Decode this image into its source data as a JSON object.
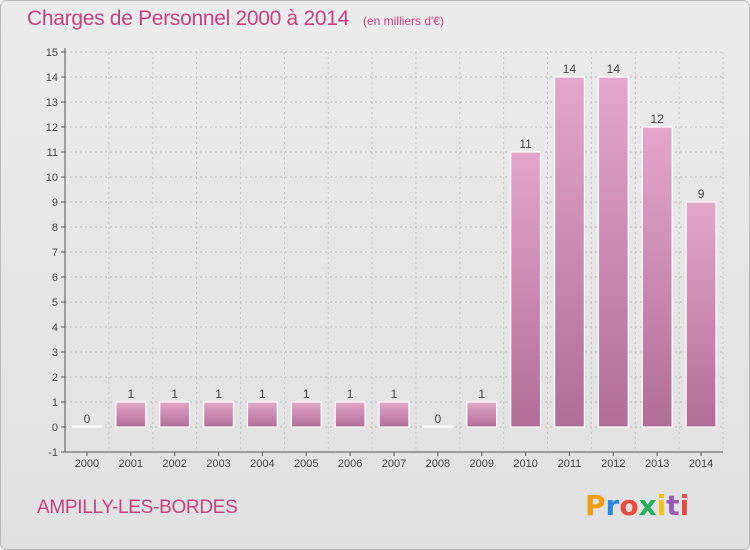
{
  "header": {
    "title": "Charges de Personnel 2000 à 2014",
    "subtitle": "(en milliers d'€)"
  },
  "footer": {
    "commune": "AMPILLY-LES-BORDES",
    "logo_text": "Proxiti",
    "logo_colors": [
      "#f39c12",
      "#2e86de",
      "#e74c3c",
      "#27ae60",
      "#f1c40f",
      "#9b59b6",
      "#e74c3c"
    ]
  },
  "chart_data": {
    "type": "bar",
    "title": "Charges de Personnel 2000 à 2014",
    "subtitle": "(en milliers d'€)",
    "categories": [
      "2000",
      "2001",
      "2002",
      "2003",
      "2004",
      "2005",
      "2006",
      "2007",
      "2008",
      "2009",
      "2010",
      "2011",
      "2012",
      "2013",
      "2014"
    ],
    "values": [
      0,
      1,
      1,
      1,
      1,
      1,
      1,
      1,
      0,
      1,
      11,
      14,
      14,
      12,
      9
    ],
    "data_labels": [
      "0",
      "1",
      "1",
      "1",
      "1",
      "1",
      "1",
      "1",
      "0",
      "1",
      "11",
      "14",
      "14",
      "12",
      "9"
    ],
    "ylim": [
      -1,
      15
    ],
    "yticks": [
      "-1",
      "0",
      "1",
      "2",
      "3",
      "4",
      "5",
      "6",
      "7",
      "8",
      "9",
      "10",
      "11",
      "12",
      "13",
      "14",
      "15"
    ],
    "grid": true,
    "bar_color_top": "#e4a6cb",
    "bar_color_bottom": "#b06e97",
    "xlabel": "",
    "ylabel": ""
  }
}
